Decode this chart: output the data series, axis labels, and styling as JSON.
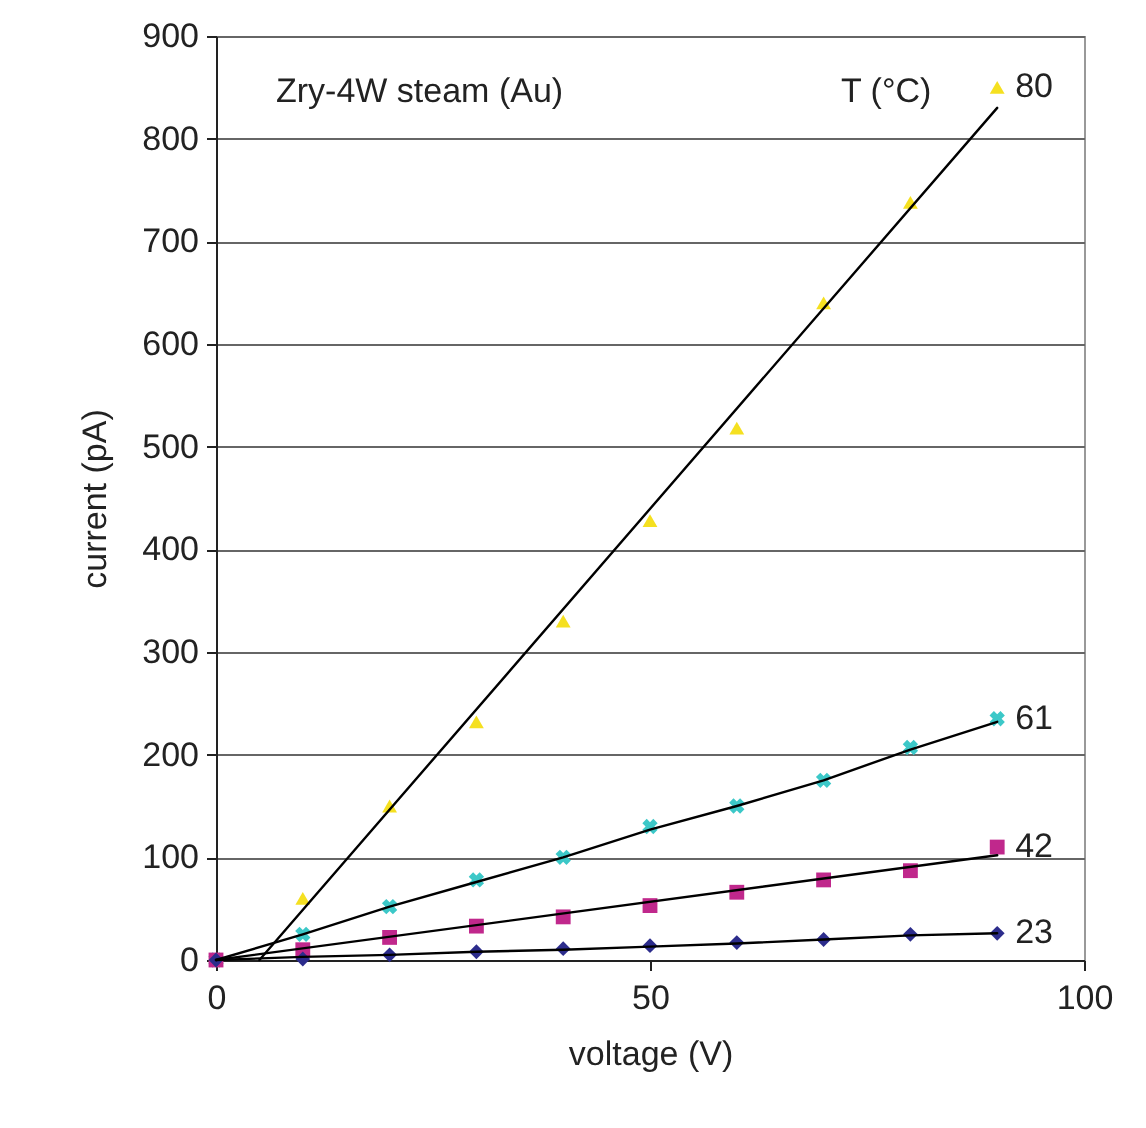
{
  "chart_data": {
    "type": "scatter",
    "xlabel": "voltage (V)",
    "ylabel": "current (pA)",
    "xlim": [
      0,
      100
    ],
    "xticks": [
      0,
      50,
      100
    ],
    "ylim": [
      0,
      900
    ],
    "yticks": [
      0,
      100,
      200,
      300,
      400,
      500,
      600,
      700,
      800,
      900
    ],
    "grid": "y",
    "x": [
      0,
      10,
      20,
      30,
      40,
      50,
      60,
      70,
      80,
      90
    ],
    "series": [
      {
        "name": "80",
        "marker": "triangle",
        "color": "#f5e020",
        "values": [
          null,
          60,
          150,
          232,
          330,
          428,
          518,
          640,
          738,
          850
        ]
      },
      {
        "name": "61",
        "marker": "cross",
        "color": "#3cc8c8",
        "values": [
          0,
          25,
          52,
          78,
          100,
          130,
          150,
          175,
          207,
          235
        ]
      },
      {
        "name": "42",
        "marker": "square",
        "color": "#c0288c",
        "values": [
          0,
          10,
          22,
          33,
          42,
          53,
          66,
          78,
          87,
          110
        ]
      },
      {
        "name": "23",
        "marker": "diamond",
        "color": "#2c2c8c",
        "values": [
          0,
          1,
          5,
          8,
          11,
          14,
          17,
          20,
          25,
          26
        ]
      },
      {
        "type": "line",
        "color": "#000000",
        "x": [
          5,
          90
        ],
        "values": [
          0,
          830
        ]
      },
      {
        "type": "line",
        "color": "#000000",
        "values": [
          0,
          25,
          52,
          76,
          100,
          127,
          150,
          175,
          205,
          232
        ]
      },
      {
        "type": "line",
        "color": "#000000",
        "x": [
          0,
          90
        ],
        "values": [
          0,
          102
        ]
      },
      {
        "type": "line",
        "color": "#000000",
        "values": [
          0,
          3,
          5,
          8,
          10,
          13,
          16,
          20,
          24,
          26
        ]
      }
    ],
    "annotations": [
      "Zry-4W steam (Au)",
      "T (°C)"
    ]
  }
}
